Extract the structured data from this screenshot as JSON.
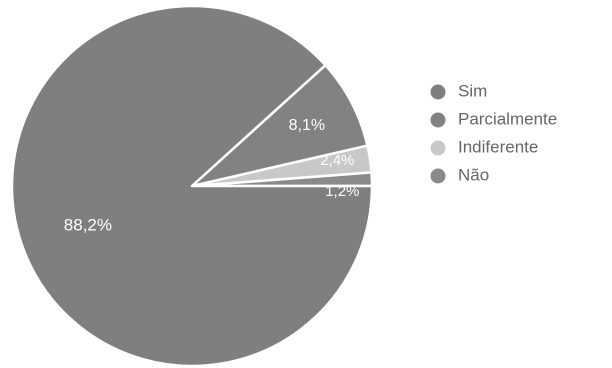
{
  "chart_data": {
    "type": "pie",
    "title": "",
    "categories": [
      "Sim",
      "Parcialmente",
      "Indiferente",
      "Não"
    ],
    "values": [
      88.2,
      8.1,
      2.4,
      1.2
    ],
    "value_labels": [
      "88,2%",
      "8,1%",
      "2,4%",
      "1,2%"
    ],
    "colors": {
      "Sim": "#7f7f7f",
      "Parcialmente": "#828282",
      "Indiferente": "#c8c8c8",
      "Não": "#8a8a8a"
    },
    "label_colors": {
      "Sim": "#ffffff",
      "Parcialmente": "#ffffff",
      "Indiferente": "#ffffff",
      "Não": "#ffffff"
    },
    "legend_position": "right"
  }
}
